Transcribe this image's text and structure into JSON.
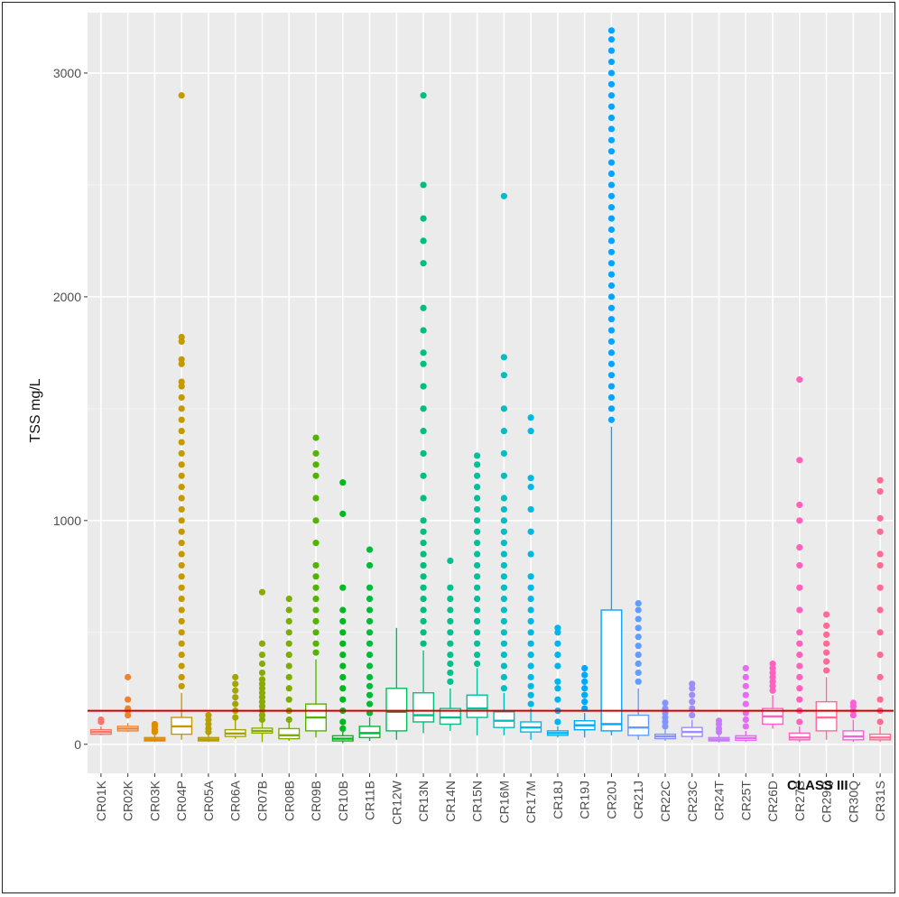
{
  "chart_data": {
    "type": "boxplot",
    "title": "",
    "xlabel": "",
    "ylabel": "TSS mg/L",
    "ylim": [
      -130,
      3270
    ],
    "yticks": [
      0,
      1000,
      2000,
      3000
    ],
    "grid": true,
    "legend": "none",
    "reference_line": {
      "value": 150,
      "color": "#cc0000",
      "label": "CLASS III"
    },
    "categories": [
      "CR01K",
      "CR02K",
      "CR03K",
      "CR04P",
      "CR05A",
      "CR06A",
      "CR07B",
      "CR08B",
      "CR09B",
      "CR10B",
      "CR11B",
      "CR12W",
      "CR13N",
      "CR14N",
      "CR15N",
      "CR16M",
      "CR17M",
      "CR18J",
      "CR19J",
      "CR20J",
      "CR21J",
      "CR22C",
      "CR23C",
      "CR24T",
      "CR25T",
      "CR26D",
      "CR27S",
      "CR29Q",
      "CR30Q",
      "CR31S"
    ],
    "colors": [
      "#F8766D",
      "#EB8335",
      "#DE8C00",
      "#C49A00",
      "#B79F00",
      "#A3A500",
      "#8AAB00",
      "#7CAE00",
      "#53B400",
      "#00B81F",
      "#00BA38",
      "#00BD5C",
      "#00BF7D",
      "#00C08B",
      "#00C19A",
      "#00BFC4",
      "#00B9E3",
      "#00B4EF",
      "#00A9FF",
      "#06A4FF",
      "#619CFF",
      "#8494FF",
      "#9F8CFF",
      "#C77CFF",
      "#E76BF3",
      "#FF61C3",
      "#FF62BC",
      "#FF6A98",
      "#FB61D7",
      "#FF6C91"
    ],
    "boxes": [
      {
        "min": 40,
        "q1": 45,
        "median": 55,
        "q3": 65,
        "max": 80,
        "outliers": [
          100,
          110
        ]
      },
      {
        "min": 55,
        "q1": 60,
        "median": 70,
        "q3": 80,
        "max": 95,
        "outliers": [
          130,
          150,
          160,
          200,
          300
        ]
      },
      {
        "min": 10,
        "q1": 15,
        "median": 22,
        "q3": 30,
        "max": 45,
        "outliers": [
          55,
          65,
          80,
          90
        ]
      },
      {
        "min": 20,
        "q1": 45,
        "median": 80,
        "q3": 120,
        "max": 230,
        "outliers": [
          260,
          300,
          350,
          400,
          450,
          500,
          550,
          600,
          650,
          700,
          750,
          800,
          850,
          900,
          950,
          1000,
          1050,
          1100,
          1150,
          1200,
          1250,
          1300,
          1350,
          1400,
          1450,
          1500,
          1550,
          1600,
          1620,
          1700,
          1720,
          1800,
          1820,
          2900
        ]
      },
      {
        "min": 10,
        "q1": 15,
        "median": 22,
        "q3": 30,
        "max": 45,
        "outliers": [
          55,
          70,
          90,
          110,
          130
        ]
      },
      {
        "min": 25,
        "q1": 35,
        "median": 48,
        "q3": 65,
        "max": 110,
        "outliers": [
          120,
          150,
          180,
          210,
          240,
          270,
          300
        ]
      },
      {
        "min": 10,
        "q1": 50,
        "median": 60,
        "q3": 72,
        "max": 100,
        "outliers": [
          110,
          130,
          150,
          170,
          190,
          210,
          230,
          250,
          270,
          290,
          320,
          360,
          400,
          450,
          680
        ]
      },
      {
        "min": 15,
        "q1": 25,
        "median": 40,
        "q3": 70,
        "max": 100,
        "outliers": [
          110,
          150,
          200,
          250,
          300,
          350,
          400,
          450,
          500,
          550,
          600,
          650
        ]
      },
      {
        "min": 30,
        "q1": 60,
        "median": 120,
        "q3": 180,
        "max": 380,
        "outliers": [
          410,
          450,
          500,
          550,
          600,
          650,
          700,
          750,
          800,
          900,
          1000,
          1100,
          1200,
          1250,
          1300,
          1370
        ]
      },
      {
        "min": 5,
        "q1": 15,
        "median": 25,
        "q3": 38,
        "max": 60,
        "outliers": [
          70,
          100,
          150,
          200,
          250,
          300,
          350,
          400,
          450,
          500,
          550,
          600,
          700,
          1030,
          1170
        ]
      },
      {
        "min": 15,
        "q1": 30,
        "median": 50,
        "q3": 80,
        "max": 120,
        "outliers": [
          140,
          180,
          220,
          260,
          300,
          350,
          400,
          450,
          500,
          550,
          600,
          650,
          700,
          800,
          870
        ]
      },
      {
        "min": 20,
        "q1": 60,
        "median": 145,
        "q3": 250,
        "max": 520,
        "outliers": []
      },
      {
        "min": 50,
        "q1": 100,
        "median": 130,
        "q3": 230,
        "max": 420,
        "outliers": [
          450,
          500,
          550,
          600,
          650,
          700,
          750,
          800,
          850,
          900,
          950,
          1000,
          1100,
          1200,
          1300,
          1400,
          1500,
          1600,
          1700,
          1750,
          1850,
          1950,
          2150,
          2250,
          2350,
          2500,
          2900
        ]
      },
      {
        "min": 60,
        "q1": 90,
        "median": 120,
        "q3": 160,
        "max": 250,
        "outliers": [
          280,
          320,
          360,
          400,
          450,
          500,
          550,
          600,
          650,
          700,
          820
        ]
      },
      {
        "min": 40,
        "q1": 120,
        "median": 160,
        "q3": 220,
        "max": 340,
        "outliers": [
          360,
          400,
          450,
          500,
          550,
          600,
          650,
          700,
          750,
          800,
          850,
          900,
          950,
          1000,
          1050,
          1100,
          1150,
          1200,
          1250,
          1290
        ]
      },
      {
        "min": 40,
        "q1": 75,
        "median": 105,
        "q3": 145,
        "max": 230,
        "outliers": [
          250,
          300,
          350,
          400,
          450,
          500,
          550,
          600,
          650,
          700,
          750,
          800,
          850,
          900,
          950,
          1000,
          1050,
          1100,
          1200,
          1300,
          1400,
          1500,
          1650,
          1730,
          2450
        ]
      },
      {
        "min": 20,
        "q1": 55,
        "median": 75,
        "q3": 100,
        "max": 160,
        "outliers": [
          180,
          220,
          260,
          300,
          350,
          400,
          450,
          500,
          550,
          600,
          650,
          700,
          750,
          850,
          950,
          1050,
          1150,
          1190,
          1400,
          1460
        ]
      },
      {
        "min": 30,
        "q1": 40,
        "median": 50,
        "q3": 60,
        "max": 80,
        "outliers": [
          100,
          150,
          200,
          250,
          280,
          350,
          400,
          450,
          500,
          520
        ]
      },
      {
        "min": 30,
        "q1": 65,
        "median": 85,
        "q3": 105,
        "max": 140,
        "outliers": [
          160,
          190,
          220,
          250,
          280,
          310,
          340
        ]
      },
      {
        "min": 40,
        "q1": 60,
        "median": 90,
        "q3": 600,
        "max": 1420,
        "outliers": [
          1450,
          1500,
          1550,
          1600,
          1650,
          1700,
          1750,
          1800,
          1850,
          1900,
          1950,
          2000,
          2050,
          2100,
          2150,
          2200,
          2250,
          2300,
          2350,
          2400,
          2450,
          2500,
          2550,
          2600,
          2650,
          2700,
          2750,
          2800,
          2850,
          2900,
          2950,
          3000,
          3050,
          3100,
          3150,
          3190
        ]
      },
      {
        "min": 20,
        "q1": 40,
        "median": 75,
        "q3": 130,
        "max": 250,
        "outliers": [
          280,
          320,
          360,
          400,
          440,
          480,
          520,
          560,
          600,
          630
        ]
      },
      {
        "min": 15,
        "q1": 25,
        "median": 35,
        "q3": 45,
        "max": 65,
        "outliers": [
          80,
          100,
          120,
          140,
          160,
          185
        ]
      },
      {
        "min": 20,
        "q1": 35,
        "median": 55,
        "q3": 75,
        "max": 110,
        "outliers": [
          130,
          160,
          190,
          220,
          250,
          270
        ]
      },
      {
        "min": 8,
        "q1": 15,
        "median": 22,
        "q3": 30,
        "max": 45,
        "outliers": [
          55,
          70,
          90,
          105
        ]
      },
      {
        "min": 10,
        "q1": 18,
        "median": 28,
        "q3": 38,
        "max": 60,
        "outliers": [
          80,
          110,
          140,
          180,
          220,
          260,
          300,
          340
        ]
      },
      {
        "min": 70,
        "q1": 90,
        "median": 125,
        "q3": 160,
        "max": 220,
        "outliers": [
          240,
          260,
          280,
          300,
          320,
          340,
          360
        ]
      },
      {
        "min": 10,
        "q1": 20,
        "median": 30,
        "q3": 50,
        "max": 80,
        "outliers": [
          100,
          150,
          200,
          250,
          300,
          350,
          400,
          450,
          500,
          600,
          700,
          800,
          880,
          1000,
          1070,
          1270,
          1630
        ]
      },
      {
        "min": 20,
        "q1": 60,
        "median": 120,
        "q3": 190,
        "max": 300,
        "outliers": [
          330,
          370,
          410,
          450,
          490,
          530,
          580
        ]
      },
      {
        "min": 10,
        "q1": 20,
        "median": 35,
        "q3": 60,
        "max": 110,
        "outliers": [
          130,
          150,
          170,
          185
        ]
      },
      {
        "min": 10,
        "q1": 20,
        "median": 30,
        "q3": 45,
        "max": 80,
        "outliers": [
          100,
          150,
          200,
          300,
          400,
          500,
          600,
          700,
          800,
          850,
          950,
          1010,
          1130,
          1180
        ]
      }
    ]
  }
}
